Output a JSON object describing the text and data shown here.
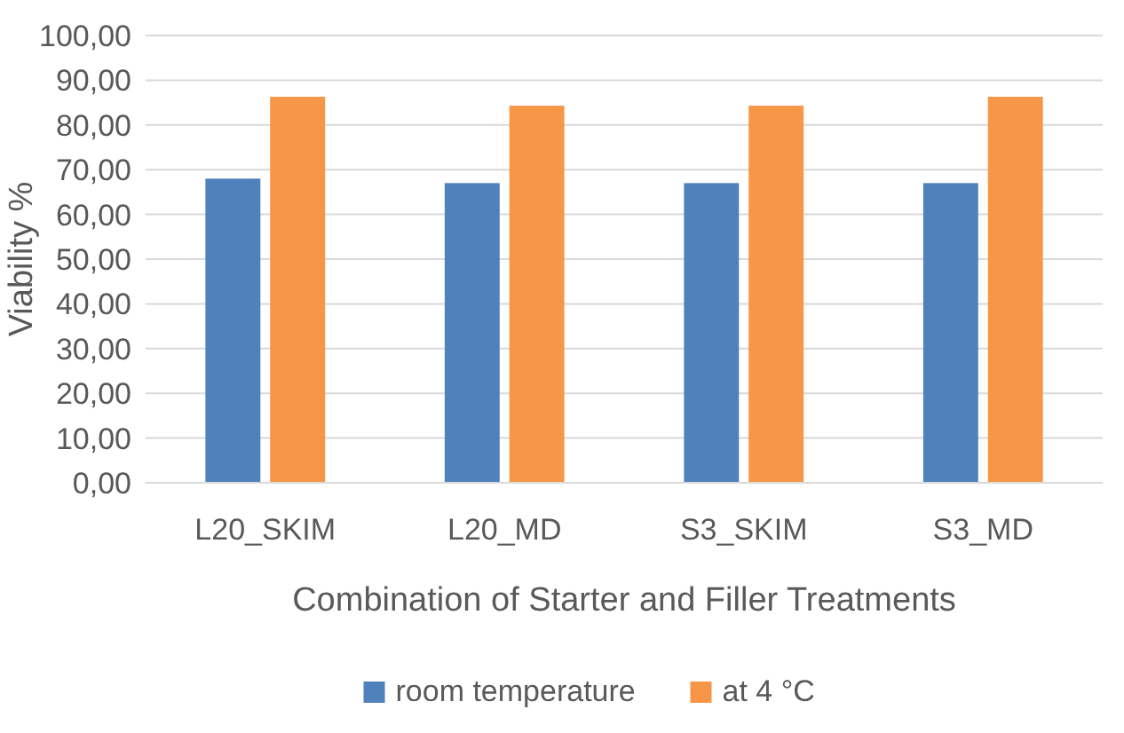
{
  "chart_data": {
    "type": "bar",
    "xlabel": "Combination of Starter and Filler Treatments",
    "ylabel": "Viability %",
    "categories": [
      "L20_SKIM",
      "L20_MD",
      "S3_SKIM",
      "S3_MD"
    ],
    "series": [
      {
        "name": "room temperature",
        "color": "#4f81bd",
        "values": [
          68,
          67,
          67,
          67
        ]
      },
      {
        "name": "at 4 °C",
        "color": "#f79646",
        "values": [
          86.3,
          84.3,
          84.3,
          86.3
        ]
      }
    ],
    "ylim": [
      0,
      100
    ],
    "yticks": [
      {
        "value": 0,
        "label": "0,00"
      },
      {
        "value": 10,
        "label": "10,00"
      },
      {
        "value": 20,
        "label": "20,00"
      },
      {
        "value": 30,
        "label": "30,00"
      },
      {
        "value": 40,
        "label": "40,00"
      },
      {
        "value": 50,
        "label": "50,00"
      },
      {
        "value": 60,
        "label": "60,00"
      },
      {
        "value": 70,
        "label": "70,00"
      },
      {
        "value": 80,
        "label": "80,00"
      },
      {
        "value": 90,
        "label": "90,00"
      },
      {
        "value": 100,
        "label": "100,00"
      }
    ],
    "grid": "y",
    "legend": "bottom"
  }
}
